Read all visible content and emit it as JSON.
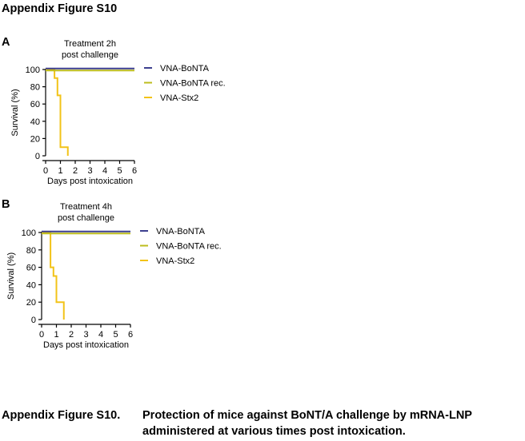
{
  "figure": {
    "title": "Appendix Figure S10",
    "caption_label": "Appendix Figure S10.",
    "caption_line1": "Protection of mice against BoNT/A challenge by mRNA-LNP",
    "caption_line2": "administered at various times post intoxication."
  },
  "chart_data": [
    {
      "panel": "A",
      "type": "line",
      "step": true,
      "title_line1": "Treatment 2h",
      "title_line2": "post challenge",
      "xlabel": "Days post intoxication",
      "ylabel": "Survival (%)",
      "xlim": [
        0,
        6
      ],
      "ylim": [
        0,
        100
      ],
      "xticks": [
        "0",
        "1",
        "2",
        "3",
        "4",
        "5",
        "6"
      ],
      "yticks": [
        "0",
        "20",
        "40",
        "60",
        "80",
        "100"
      ],
      "legend_position": "right",
      "series": [
        {
          "name": "VNA-BoNTA",
          "color": "#3c3f8f",
          "x": [
            0,
            6
          ],
          "y": [
            100,
            100
          ]
        },
        {
          "name": "VNA-BoNTA rec.",
          "color": "#bcbc1e",
          "x": [
            0,
            6
          ],
          "y": [
            100,
            100
          ]
        },
        {
          "name": "VNA-Stx2",
          "color": "#f2c318",
          "x": [
            0,
            0.6,
            0.8,
            1.0,
            1.5
          ],
          "y": [
            100,
            90,
            70,
            10,
            0
          ]
        }
      ]
    },
    {
      "panel": "B",
      "type": "line",
      "step": true,
      "title_line1": "Treatment 4h",
      "title_line2": "post challenge",
      "xlabel": "Days post intoxication",
      "ylabel": "Survival (%)",
      "xlim": [
        0,
        6
      ],
      "ylim": [
        0,
        100
      ],
      "xticks": [
        "0",
        "1",
        "2",
        "3",
        "4",
        "5",
        "6"
      ],
      "yticks": [
        "0",
        "20",
        "40",
        "60",
        "80",
        "100"
      ],
      "legend_position": "right",
      "series": [
        {
          "name": "VNA-BoNTA",
          "color": "#3c3f8f",
          "x": [
            0,
            6
          ],
          "y": [
            100,
            100
          ]
        },
        {
          "name": "VNA-BoNTA rec.",
          "color": "#bcbc1e",
          "x": [
            0,
            6
          ],
          "y": [
            100,
            100
          ]
        },
        {
          "name": "VNA-Stx2",
          "color": "#f2c318",
          "x": [
            0,
            0.6,
            0.8,
            1.0,
            1.5
          ],
          "y": [
            100,
            60,
            50,
            20,
            0
          ]
        }
      ]
    }
  ]
}
